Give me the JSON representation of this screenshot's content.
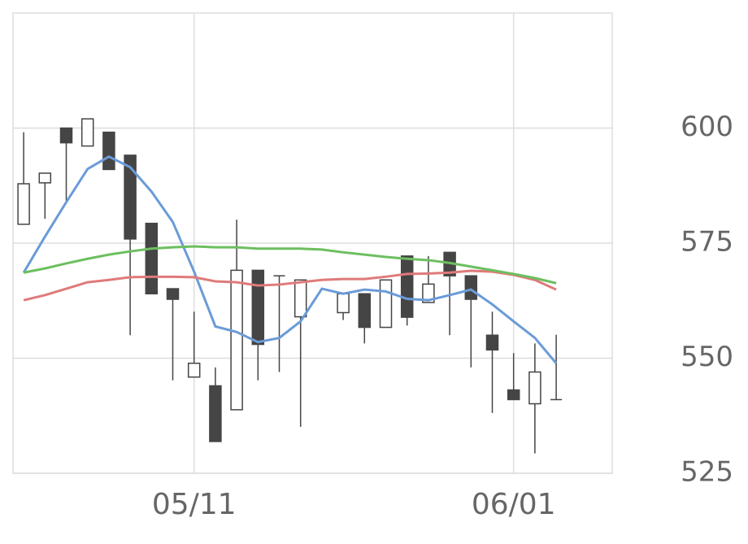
{
  "chart_data": {
    "type": "candlestick",
    "categories": [
      null,
      null,
      null,
      null,
      null,
      null,
      null,
      null,
      "05/11",
      null,
      null,
      null,
      null,
      null,
      null,
      null,
      null,
      null,
      null,
      null,
      null,
      null,
      null,
      "06/01",
      null,
      null
    ],
    "open": [
      579.1,
      588.1,
      600,
      596.1,
      599.1,
      594.1,
      579.3,
      565.1,
      545.9,
      544,
      538.8,
      569.1,
      567.9,
      559,
      null,
      559.9,
      564,
      556.7,
      572.2,
      562.1,
      573,
      567.9,
      555,
      543.1,
      540.1,
      541
    ],
    "high": [
      599.1,
      590.2,
      600,
      602,
      599.1,
      594.1,
      579.3,
      565.1,
      560.1,
      548,
      580.1,
      569.1,
      567.9,
      567,
      null,
      564,
      564,
      567,
      572.2,
      572.2,
      573,
      567.9,
      560.1,
      551.1,
      553.2,
      555.1
    ],
    "low": [
      579,
      580.3,
      584,
      596,
      591,
      555,
      564,
      545.2,
      545.9,
      531.9,
      538.8,
      545.2,
      547,
      535.1,
      null,
      558.3,
      553.2,
      556.7,
      557.1,
      562.1,
      555,
      548,
      538.1,
      541,
      529.3,
      541
    ],
    "close": [
      587.9,
      590.2,
      596.8,
      602,
      591,
      575.9,
      564,
      562.8,
      548.9,
      531.9,
      569.1,
      553,
      567.9,
      567,
      null,
      564,
      556.7,
      567,
      558.9,
      566.1,
      567.9,
      562.8,
      551.8,
      541,
      547,
      541
    ],
    "up_color": "#ffffff",
    "down_color": "#454545",
    "edge_color": "#454545",
    "lines": [
      {
        "color": "#6a9bd8",
        "values": [
          568.6,
          576.4,
          583.9,
          591.1,
          593.8,
          591.5,
          586.2,
          579.6,
          568.8,
          556.9,
          555.7,
          553.5,
          554.4,
          558,
          565.1,
          564,
          564.9,
          564.5,
          562.9,
          562.6,
          563.7,
          564.9,
          561.7,
          558,
          554.4,
          548.9
        ]
      },
      {
        "color": "#e07a7a",
        "values": [
          562.6,
          563.7,
          565.1,
          566.5,
          567,
          567.6,
          567.7,
          567.7,
          567.6,
          566.7,
          566.5,
          565.8,
          566,
          566.5,
          567,
          567.2,
          567.2,
          567.7,
          568.3,
          568.4,
          568.6,
          569,
          568.8,
          568.1,
          567,
          564.9
        ]
      },
      {
        "color": "#6cbf5f",
        "values": [
          568.6,
          569.5,
          570.6,
          571.6,
          572.5,
          573.2,
          573.8,
          574.1,
          574.3,
          574.1,
          574.1,
          573.8,
          573.8,
          573.8,
          573.6,
          573,
          572.5,
          572,
          571.6,
          571.3,
          570.7,
          569.9,
          569.1,
          568.3,
          567.4,
          566.3
        ]
      }
    ],
    "ylim": [
      525,
      625
    ],
    "yticks": [
      525,
      550,
      575,
      600
    ],
    "grid": true
  }
}
